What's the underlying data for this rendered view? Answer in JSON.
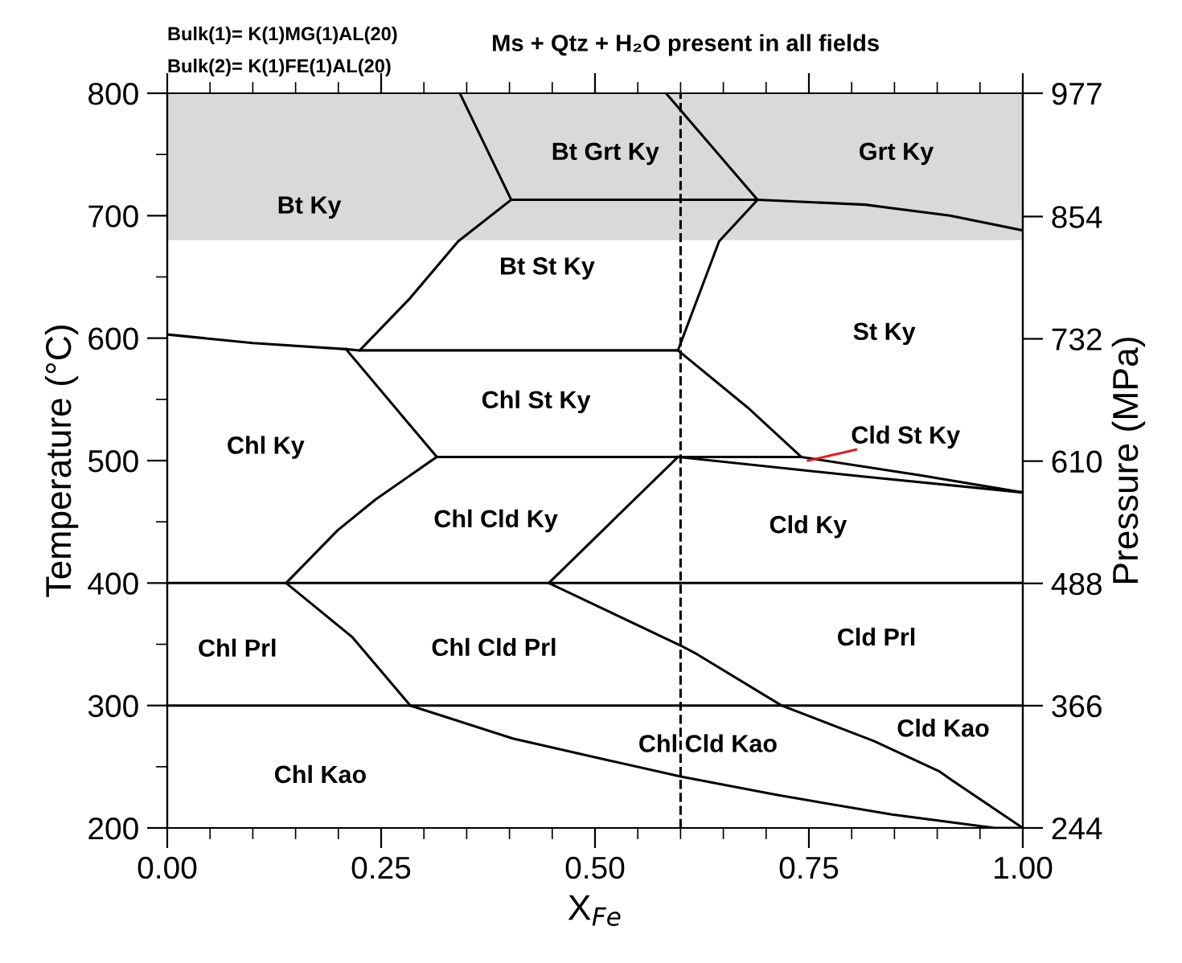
{
  "chart_data": {
    "type": "line",
    "title": "Ms + Qtz + H₂O present in all fields",
    "xlabel": "X$_{Fe}$",
    "ylabel": "Temperature (°C)",
    "y2label": "Pressure (MPa)",
    "xlim": [
      0,
      1
    ],
    "ylim": [
      200,
      800
    ],
    "y2lim": [
      244,
      977
    ],
    "xticks": [
      {
        "value": 0,
        "label": "0.00"
      },
      {
        "value": 0.05,
        "label": null
      },
      {
        "value": 0.1,
        "label": null
      },
      {
        "value": 0.15,
        "label": null
      },
      {
        "value": 0.2,
        "label": null
      },
      {
        "value": 0.25,
        "label": "0.25"
      },
      {
        "value": 0.3,
        "label": null
      },
      {
        "value": 0.35,
        "label": null
      },
      {
        "value": 0.4,
        "label": null
      },
      {
        "value": 0.45,
        "label": null
      },
      {
        "value": 0.5,
        "label": "0.50"
      },
      {
        "value": 0.55,
        "label": null
      },
      {
        "value": 0.6,
        "label": null
      },
      {
        "value": 0.65,
        "label": null
      },
      {
        "value": 0.7,
        "label": null
      },
      {
        "value": 0.75,
        "label": "0.75"
      },
      {
        "value": 0.8,
        "label": null
      },
      {
        "value": 0.85,
        "label": null
      },
      {
        "value": 0.9,
        "label": null
      },
      {
        "value": 0.95,
        "label": null
      },
      {
        "value": 1,
        "label": "1.00"
      }
    ],
    "yticks": [
      200,
      {
        "value": 250,
        "label": null
      },
      300,
      {
        "value": 350,
        "label": null
      },
      400,
      {
        "value": 450,
        "label": null
      },
      500,
      {
        "value": 550,
        "label": null
      },
      600,
      {
        "value": 650,
        "label": null
      },
      700,
      {
        "value": 750,
        "label": null
      },
      800
    ],
    "y2ticks": [
      244,
      366,
      488,
      610,
      732,
      854,
      977
    ],
    "grid": false,
    "legend": false,
    "marker": "none",
    "line_style": "solid",
    "series": [
      {
        "color": "#000000",
        "x": [
          0,
          0.1,
          0.209,
          0.225,
          0.597
        ],
        "values": [
          603,
          596,
          591,
          590,
          590
        ]
      },
      {
        "color": "#000000",
        "x": [
          0.315,
          0.741,
          0.88,
          1
        ],
        "values": [
          503,
          503,
          488,
          474
        ]
      },
      {
        "color": "#000000",
        "x": [
          0.209,
          0.315
        ],
        "values": [
          591,
          503
        ]
      },
      {
        "color": "#000000",
        "x": [
          0.225,
          0.283,
          0.34,
          0.402
        ],
        "values": [
          590,
          632,
          679,
          713
        ]
      },
      {
        "color": "#000000",
        "x": [
          0.402,
          0.69,
          0.816,
          0.915,
          1
        ],
        "values": [
          713,
          713,
          709,
          700,
          688
        ]
      },
      {
        "color": "#000000",
        "x": [
          0.342,
          0.402
        ],
        "values": [
          800,
          713
        ]
      },
      {
        "color": "#000000",
        "x": [
          0.583,
          0.69
        ],
        "values": [
          800,
          713
        ]
      },
      {
        "color": "#000000",
        "x": [
          0.69,
          0.645,
          0.597
        ],
        "values": [
          713,
          679,
          590
        ]
      },
      {
        "color": "#000000",
        "x": [
          0.597,
          0.679,
          0.741
        ],
        "values": [
          590,
          543,
          503
        ]
      },
      {
        "color": "#000000",
        "x": [
          0.597,
          0.813,
          1
        ],
        "values": [
          503,
          487,
          474
        ]
      },
      {
        "color": "#e31a1c",
        "x": [
          0.749,
          0.805
        ],
        "values": [
          500,
          509
        ]
      },
      {
        "color": "#000000",
        "x": [
          0.315,
          0.243,
          0.199,
          0.139
        ],
        "values": [
          503,
          468,
          443,
          400
        ]
      },
      {
        "color": "#000000",
        "x": [
          0.597,
          0.509,
          0.446
        ],
        "values": [
          503,
          443,
          400
        ]
      },
      {
        "color": "#000000",
        "x": [
          0,
          1
        ],
        "values": [
          400,
          400
        ]
      },
      {
        "color": "#000000",
        "x": [
          0,
          1
        ],
        "values": [
          300,
          300
        ]
      },
      {
        "color": "#000000",
        "x": [
          0.139,
          0.216,
          0.284
        ],
        "values": [
          400,
          356,
          300
        ]
      },
      {
        "color": "#000000",
        "x": [
          0.446,
          0.6,
          0.619,
          0.718,
          0.826,
          0.903,
          0.917,
          1
        ],
        "values": [
          400,
          349,
          342,
          300,
          271,
          246,
          239,
          200
        ]
      },
      {
        "color": "#000000",
        "x": [
          0.284,
          0.404,
          0.511,
          0.6,
          0.712,
          0.847,
          0.967,
          1
        ],
        "values": [
          300,
          273,
          256,
          242,
          227,
          211,
          200,
          200
        ]
      }
    ],
    "ref_lines": [
      {
        "axis": "x",
        "value": 0.6,
        "color": "#000000",
        "line_style": "dashed"
      }
    ],
    "bands": [
      {
        "axis": "y",
        "from": 680,
        "to": 800,
        "color": "#d9d9d9"
      }
    ],
    "annotations": [
      "Bulk(1)= K(1)MG(1)AL(20)",
      "Bulk(2)= K(1)FE(1)AL(20)",
      "Bt Ky",
      "Bt Grt Ky",
      "Grt Ky",
      "Bt St Ky",
      "St Ky",
      "Chl St Ky",
      "Cld St Ky",
      "Chl Ky",
      "Chl Cld Ky",
      "Cld Ky",
      "Chl Prl",
      "Chl Cld Prl",
      "Cld Prl",
      "Cld Kao",
      "Chl Cld Kao",
      "Chl Kao"
    ]
  }
}
